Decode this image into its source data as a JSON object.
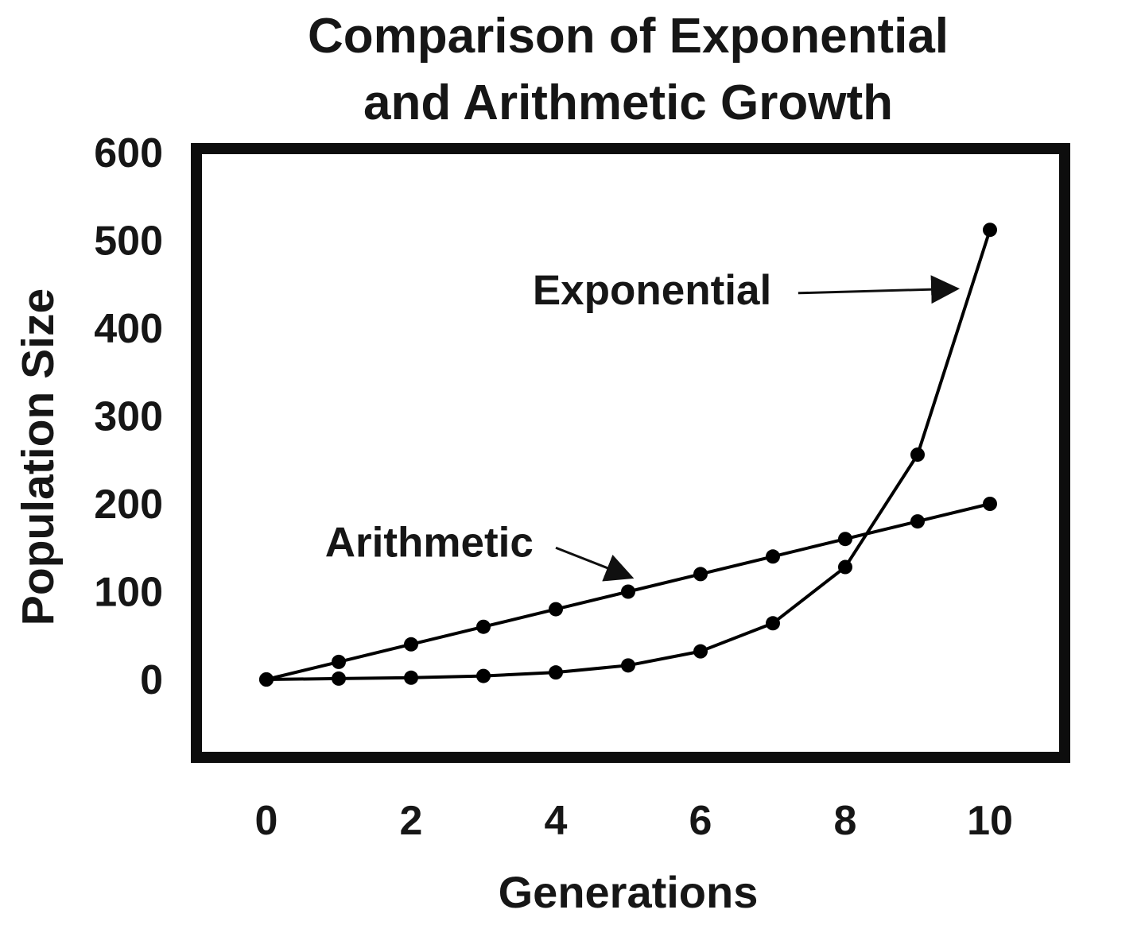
{
  "title": {
    "line1": "Comparison of Exponential",
    "line2": "and Arithmetic Growth"
  },
  "chart_data": {
    "type": "line",
    "title": "Comparison of Exponential and Arithmetic Growth",
    "xlabel": "Generations",
    "ylabel": "Population Size",
    "x": [
      0,
      1,
      2,
      3,
      4,
      5,
      6,
      7,
      8,
      9,
      10
    ],
    "series": [
      {
        "name": "Exponential",
        "values": [
          0,
          1,
          2,
          4,
          8,
          16,
          32,
          64,
          128,
          256,
          512
        ]
      },
      {
        "name": "Arithmetic",
        "values": [
          0,
          20,
          40,
          60,
          80,
          100,
          120,
          140,
          160,
          180,
          200
        ]
      }
    ],
    "xticks": [
      0,
      2,
      4,
      6,
      8,
      10
    ],
    "yticks": [
      0,
      100,
      200,
      300,
      400,
      500,
      600
    ],
    "xlim": [
      -1,
      11
    ],
    "ylim": [
      -90,
      600
    ],
    "grid": false,
    "legend_position": "none",
    "marker": "circle",
    "line_color": "#000000",
    "background": "#ffffff",
    "annotations": [
      {
        "text": "Exponential",
        "text_x": 5.33,
        "text_y": 427,
        "arrow_from_x": 7.35,
        "arrow_from_y": 440,
        "arrow_to_x": 9.55,
        "arrow_to_y": 445
      },
      {
        "text": "Arithmetic",
        "text_x": 2.25,
        "text_y": 140,
        "arrow_from_x": 4.0,
        "arrow_from_y": 150,
        "arrow_to_x": 5.05,
        "arrow_to_y": 116
      }
    ]
  }
}
